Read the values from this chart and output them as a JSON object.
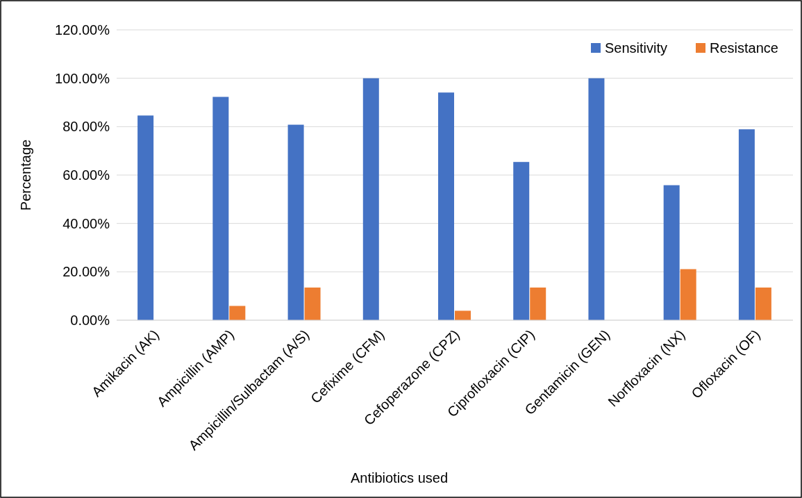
{
  "chart_data": {
    "type": "bar",
    "xlabel": "Antibiotics used",
    "ylabel": "Percentage",
    "categories": [
      "Amikacin (AK)",
      "Ampicillin (AMP)",
      "Ampicillin/Sulbactam (A/S)",
      "Cefixime (CFM)",
      "Cefoperazone (CPZ)",
      "Ciprofloxacin (CIP)",
      "Gentamicin (GEN)",
      "Norfloxacin (NX)",
      "Ofloxacin (OF)"
    ],
    "series": [
      {
        "name": "Sensitivity",
        "color": "#4472c4",
        "values": [
          84.6,
          92.3,
          80.8,
          100,
          94.1,
          65.4,
          100,
          55.8,
          78.9
        ]
      },
      {
        "name": "Resistance",
        "color": "#ed7d31",
        "values": [
          0,
          5.9,
          13.5,
          0,
          3.9,
          13.5,
          0,
          21.1,
          13.5
        ]
      }
    ],
    "ylim": [
      0,
      120
    ],
    "yticks": [
      {
        "value": 0,
        "label": "0.00%"
      },
      {
        "value": 20,
        "label": "20.00%"
      },
      {
        "value": 40,
        "label": "40.00%"
      },
      {
        "value": 60,
        "label": "60.00%"
      },
      {
        "value": 80,
        "label": "80.00%"
      },
      {
        "value": 100,
        "label": "100.00%"
      },
      {
        "value": 120,
        "label": "120.00%"
      }
    ],
    "grid": "y",
    "legend": "top right"
  }
}
